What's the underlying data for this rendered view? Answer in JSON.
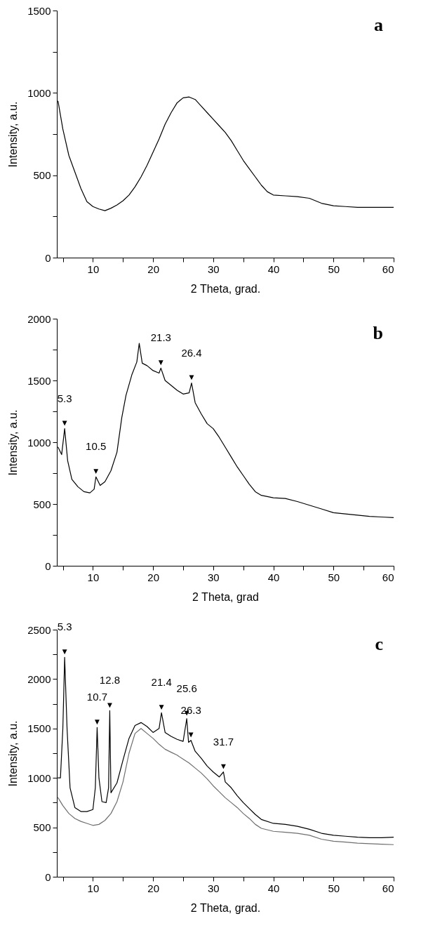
{
  "chart_data": [
    {
      "type": "line",
      "title": "a",
      "xlabel": "2 Theta, grad.",
      "ylabel": "Intensity, a.u.",
      "xlim": [
        4,
        60
      ],
      "ylim": [
        0,
        1500
      ],
      "xticks": [
        {
          "value": 5,
          "label": null
        },
        10,
        {
          "value": 15,
          "label": null
        },
        20,
        {
          "value": 25,
          "label": null
        },
        30,
        {
          "value": 35,
          "label": null
        },
        40,
        {
          "value": 45,
          "label": null
        },
        50,
        {
          "value": 55,
          "label": null
        },
        60
      ],
      "yticks": [
        0,
        {
          "value": 250,
          "label": null
        },
        500,
        {
          "value": 750,
          "label": null
        },
        1000,
        {
          "value": 1250,
          "label": null
        },
        1500
      ],
      "series": [
        {
          "color": "#000000",
          "x": [
            4.2,
            5,
            6,
            7,
            8,
            9,
            10,
            11,
            12,
            13,
            14,
            15,
            16,
            17,
            18,
            19,
            20,
            21,
            22,
            23,
            24,
            25,
            26,
            27,
            28,
            29,
            30,
            31,
            32,
            33,
            34,
            35,
            36,
            37,
            38,
            39,
            40,
            42,
            44,
            46,
            48,
            50,
            52,
            54,
            56,
            58,
            60
          ],
          "values": [
            950,
            780,
            620,
            520,
            420,
            340,
            310,
            295,
            285,
            300,
            320,
            345,
            380,
            430,
            490,
            560,
            640,
            720,
            810,
            880,
            940,
            970,
            975,
            960,
            920,
            880,
            840,
            800,
            760,
            710,
            650,
            590,
            540,
            490,
            440,
            400,
            380,
            375,
            370,
            360,
            330,
            315,
            310,
            305,
            305,
            305,
            305
          ]
        }
      ]
    },
    {
      "type": "line",
      "title": "b",
      "xlabel": "2 Theta, grad",
      "ylabel": "Intensity, a.u.",
      "xlim": [
        4,
        60
      ],
      "ylim": [
        0,
        2000
      ],
      "xticks": [
        {
          "value": 5,
          "label": null
        },
        10,
        {
          "value": 15,
          "label": null
        },
        20,
        {
          "value": 25,
          "label": null
        },
        30,
        {
          "value": 35,
          "label": null
        },
        40,
        {
          "value": 45,
          "label": null
        },
        50,
        {
          "value": 55,
          "label": null
        },
        60
      ],
      "yticks": [
        0,
        {
          "value": 250,
          "label": null
        },
        500,
        {
          "value": 750,
          "label": null
        },
        1000,
        {
          "value": 1250,
          "label": null
        },
        1500,
        {
          "value": 1750,
          "label": null
        },
        2000
      ],
      "annotations": [
        {
          "text": "5.3",
          "x": 5.3,
          "y": 1110
        },
        {
          "text": "10.5",
          "x": 10.5,
          "y": 720
        },
        {
          "text": "21.3",
          "x": 21.3,
          "y": 1600
        },
        {
          "text": "26.4",
          "x": 26.4,
          "y": 1480
        }
      ],
      "series": [
        {
          "color": "#000000",
          "x": [
            4.2,
            4.8,
            5.3,
            5.8,
            6.5,
            7.5,
            8.5,
            9.5,
            10.2,
            10.5,
            11.2,
            12,
            13,
            14,
            14.8,
            15.5,
            16.5,
            17.3,
            17.7,
            18.2,
            19,
            20,
            21,
            21.3,
            22,
            23,
            24,
            25,
            26,
            26.4,
            27,
            28,
            29,
            30,
            31,
            32,
            33,
            34,
            35,
            36,
            37,
            38,
            40,
            42,
            44,
            46,
            48,
            50,
            52,
            54,
            56,
            58,
            60
          ],
          "values": [
            960,
            900,
            1110,
            850,
            700,
            640,
            600,
            590,
            620,
            720,
            650,
            680,
            770,
            920,
            1200,
            1380,
            1550,
            1650,
            1800,
            1640,
            1620,
            1580,
            1560,
            1600,
            1500,
            1460,
            1420,
            1390,
            1400,
            1480,
            1320,
            1230,
            1150,
            1110,
            1040,
            960,
            880,
            800,
            730,
            660,
            600,
            570,
            550,
            545,
            520,
            490,
            460,
            430,
            420,
            410,
            400,
            395,
            390
          ]
        }
      ]
    },
    {
      "type": "line",
      "title": "c",
      "xlabel": "2 Theta, grad.",
      "ylabel": "Intensity, a.u.",
      "xlim": [
        4,
        60
      ],
      "ylim": [
        0,
        2500
      ],
      "xticks": [
        {
          "value": 5,
          "label": null
        },
        10,
        {
          "value": 15,
          "label": null
        },
        20,
        {
          "value": 25,
          "label": null
        },
        30,
        {
          "value": 35,
          "label": null
        },
        40,
        {
          "value": 45,
          "label": null
        },
        50,
        {
          "value": 55,
          "label": null
        },
        60
      ],
      "yticks": [
        0,
        {
          "value": 250,
          "label": null
        },
        500,
        {
          "value": 750,
          "label": null
        },
        1000,
        {
          "value": 1250,
          "label": null
        },
        1500,
        {
          "value": 1750,
          "label": null
        },
        2000,
        {
          "value": 2250,
          "label": null
        },
        2500
      ],
      "annotations": [
        {
          "text": "5.3",
          "x": 5.3,
          "y": 2220
        },
        {
          "text": "10.7",
          "x": 10.7,
          "y": 1510
        },
        {
          "text": "12.8",
          "x": 12.8,
          "y": 1680
        },
        {
          "text": "21.4",
          "x": 21.4,
          "y": 1660
        },
        {
          "text": "25.6",
          "x": 25.6,
          "y": 1600
        },
        {
          "text": "26.3",
          "x": 26.3,
          "y": 1380
        },
        {
          "text": "31.7",
          "x": 31.7,
          "y": 1060
        }
      ],
      "series": [
        {
          "color": "#000000",
          "x": [
            4.2,
            4.6,
            5.0,
            5.3,
            5.7,
            6.2,
            7,
            8,
            9,
            10,
            10.4,
            10.7,
            11.0,
            11.5,
            12.2,
            12.6,
            12.8,
            13.0,
            14,
            15,
            16,
            17,
            18,
            19,
            20,
            21,
            21.4,
            22,
            23,
            24,
            25,
            25.6,
            25.9,
            26.3,
            27,
            28,
            29,
            30,
            31,
            31.7,
            32,
            33,
            34,
            35,
            36,
            37,
            38,
            40,
            42,
            44,
            46,
            48,
            50,
            52,
            54,
            56,
            58,
            60
          ],
          "values": [
            1000,
            1000,
            1500,
            2220,
            1500,
            900,
            700,
            660,
            660,
            680,
            900,
            1510,
            1000,
            760,
            750,
            900,
            1680,
            850,
            950,
            1180,
            1400,
            1530,
            1560,
            1520,
            1460,
            1500,
            1660,
            1460,
            1420,
            1390,
            1370,
            1600,
            1360,
            1380,
            1270,
            1200,
            1120,
            1060,
            1010,
            1060,
            960,
            900,
            820,
            750,
            690,
            630,
            580,
            540,
            530,
            510,
            480,
            440,
            420,
            410,
            400,
            395,
            395,
            400
          ]
        },
        {
          "color": "#6e6e6e",
          "x": [
            4.2,
            5,
            6,
            7,
            8,
            9,
            10,
            11,
            12,
            13,
            14,
            15,
            16,
            17,
            18,
            19,
            20,
            21,
            22,
            23,
            24,
            25,
            26,
            27,
            28,
            29,
            30,
            31,
            32,
            33,
            34,
            35,
            36,
            37,
            38,
            40,
            42,
            44,
            46,
            48,
            50,
            52,
            54,
            56,
            58,
            60
          ],
          "values": [
            800,
            720,
            640,
            590,
            560,
            540,
            520,
            530,
            570,
            640,
            760,
            960,
            1250,
            1450,
            1500,
            1450,
            1400,
            1340,
            1290,
            1260,
            1230,
            1190,
            1150,
            1100,
            1050,
            990,
            920,
            860,
            800,
            750,
            700,
            640,
            590,
            530,
            490,
            460,
            450,
            440,
            420,
            380,
            360,
            350,
            340,
            335,
            330,
            325
          ]
        }
      ]
    }
  ]
}
